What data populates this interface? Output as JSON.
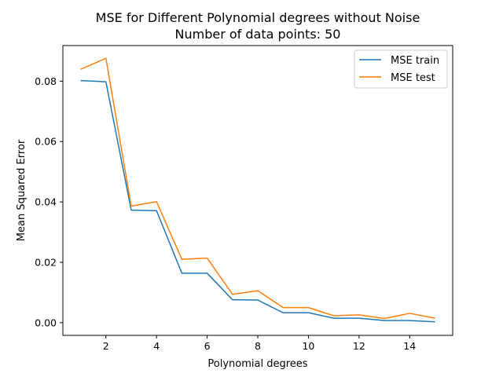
{
  "chart_data": {
    "type": "line",
    "title": "MSE for Different Polynomial degrees without Noise",
    "subtitle": "Number of data points: 50",
    "xlabel": "Polynomial degrees",
    "ylabel": "Mean Squared Error",
    "x": [
      1,
      2,
      3,
      4,
      5,
      6,
      7,
      8,
      9,
      10,
      11,
      12,
      13,
      14,
      15
    ],
    "xlim": [
      0.3,
      15.7
    ],
    "ylim": [
      -0.0042,
      0.0918
    ],
    "xticks": [
      2,
      4,
      6,
      8,
      10,
      12,
      14
    ],
    "xtick_labels": [
      "2",
      "4",
      "6",
      "8",
      "10",
      "12",
      "14"
    ],
    "yticks": [
      0.0,
      0.02,
      0.04,
      0.06,
      0.08
    ],
    "ytick_labels": [
      "0.00",
      "0.02",
      "0.04",
      "0.06",
      "0.08"
    ],
    "grid": false,
    "legend_position": "top-right",
    "series": [
      {
        "name": "MSE train",
        "color": "#1f77b4",
        "values": [
          0.0802,
          0.0798,
          0.0373,
          0.0371,
          0.0164,
          0.0164,
          0.0076,
          0.0075,
          0.0033,
          0.0033,
          0.0015,
          0.0015,
          0.0007,
          0.0007,
          0.0003
        ]
      },
      {
        "name": "MSE test",
        "color": "#ff7f0e",
        "values": [
          0.0839,
          0.0876,
          0.0386,
          0.0401,
          0.021,
          0.0214,
          0.0094,
          0.0106,
          0.005,
          0.005,
          0.0023,
          0.0026,
          0.0014,
          0.0031,
          0.0015
        ]
      }
    ]
  }
}
